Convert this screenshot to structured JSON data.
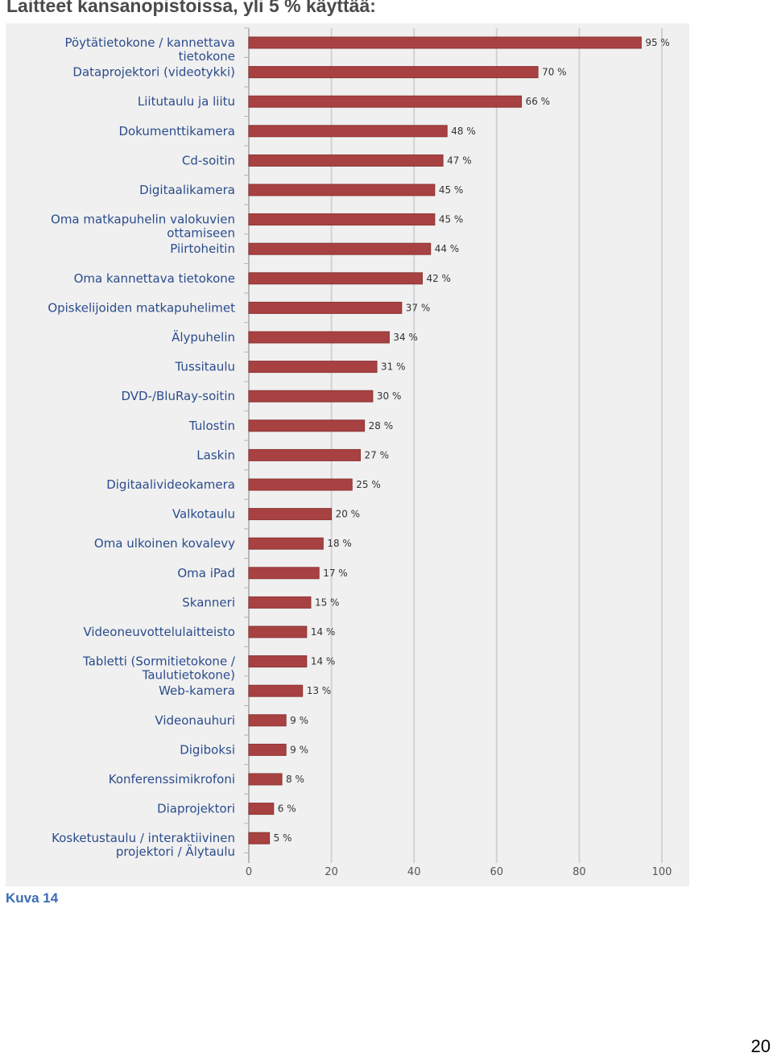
{
  "page": {
    "heading": "Laitteet kansanopistoissa, yli 5 % käyttää:",
    "caption": "Kuva 14",
    "page_number": "20"
  },
  "colors": {
    "bar": "#a84242",
    "bar_edge": "#8c3232",
    "panel": "#f0f0f0",
    "grid": "#d2d2d2",
    "category_text": "#2b4c8c",
    "caption": "#3b6cb3"
  },
  "chart_data": {
    "type": "bar",
    "orientation": "horizontal",
    "title": "",
    "xlabel": "",
    "ylabel": "",
    "xlim": [
      0,
      100
    ],
    "x_ticks": [
      0,
      20,
      40,
      60,
      80,
      100
    ],
    "grid": true,
    "value_suffix": " %",
    "categories": [
      [
        "Pöytätietokone / kannettava",
        "tietokone"
      ],
      [
        "Dataprojektori (videotykki)"
      ],
      [
        "Liitutaulu ja liitu"
      ],
      [
        "Dokumenttikamera"
      ],
      [
        "Cd-soitin"
      ],
      [
        "Digitaalikamera"
      ],
      [
        "Oma matkapuhelin valokuvien",
        "ottamiseen"
      ],
      [
        "Piirtoheitin"
      ],
      [
        "Oma kannettava tietokone"
      ],
      [
        "Opiskelijoiden matkapuhelimet"
      ],
      [
        "Älypuhelin"
      ],
      [
        "Tussitaulu"
      ],
      [
        "DVD-/BluRay-soitin"
      ],
      [
        "Tulostin"
      ],
      [
        "Laskin"
      ],
      [
        "Digitaalivideokamera"
      ],
      [
        "Valkotaulu"
      ],
      [
        "Oma ulkoinen kovalevy"
      ],
      [
        "Oma iPad"
      ],
      [
        "Skanneri"
      ],
      [
        "Videoneuvottelulaitteisto"
      ],
      [
        "Tabletti (Sormitietokone /",
        "Taulutietokone)"
      ],
      [
        "Web-kamera"
      ],
      [
        "Videonauhuri"
      ],
      [
        "Digiboksi"
      ],
      [
        "Konferenssimikrofoni"
      ],
      [
        "Diaprojektori"
      ],
      [
        "Kosketustaulu / interaktiivinen",
        "projektori / Älytaulu"
      ]
    ],
    "values": [
      95,
      70,
      66,
      48,
      47,
      45,
      45,
      44,
      42,
      37,
      34,
      31,
      30,
      28,
      27,
      25,
      20,
      18,
      17,
      15,
      14,
      14,
      13,
      9,
      9,
      8,
      6,
      5
    ]
  }
}
